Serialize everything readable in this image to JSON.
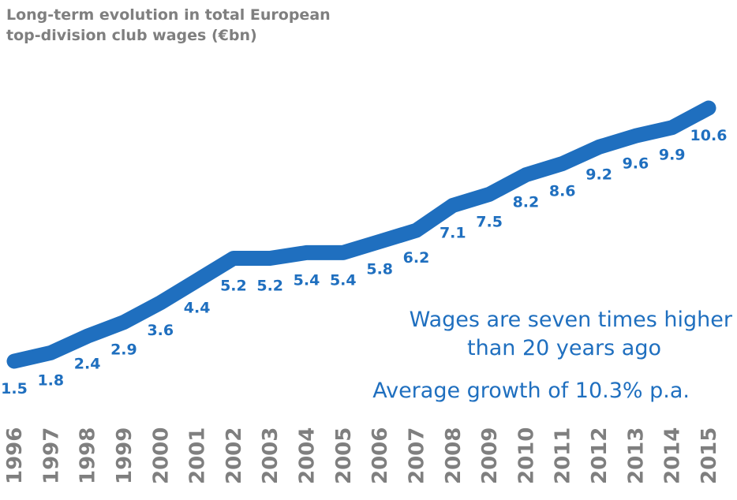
{
  "chart_data": {
    "type": "line",
    "title": "Long-term evolution in total European\ntop-division club wages (€bn)",
    "x": [
      "1996",
      "1997",
      "1998",
      "1999",
      "2000",
      "2001",
      "2002",
      "2003",
      "2004",
      "2005",
      "2006",
      "2007",
      "2008",
      "2009",
      "2010",
      "2011",
      "2012",
      "2013",
      "2014",
      "2015"
    ],
    "series": [
      {
        "values": [
          1.5,
          1.8,
          2.4,
          2.9,
          3.6,
          4.4,
          5.2,
          5.2,
          5.4,
          5.4,
          5.8,
          6.2,
          7.1,
          7.5,
          8.2,
          8.6,
          9.2,
          9.6,
          9.9,
          10.6
        ]
      }
    ],
    "data_labels": [
      "1.5",
      "1.8",
      "2.4",
      "2.9",
      "3.6",
      "4.4",
      "5.2",
      "5.2",
      "5.4",
      "5.4",
      "5.8",
      "6.2",
      "7.1",
      "7.5",
      "8.2",
      "8.6",
      "9.2",
      "9.6",
      "9.9",
      "10.6"
    ],
    "annotations": [
      "Wages are seven times higher",
      "than 20 years ago",
      "Average growth of 10.3% p.a."
    ],
    "xlabel": "",
    "ylabel": "",
    "ylim": [
      1.5,
      10.6
    ],
    "grid": false,
    "legend": "none",
    "colors": {
      "line": "#1f6fbf",
      "labels": "#1f6fbf",
      "ticks": "#7f7f7f",
      "title": "#7f7f7f"
    }
  }
}
